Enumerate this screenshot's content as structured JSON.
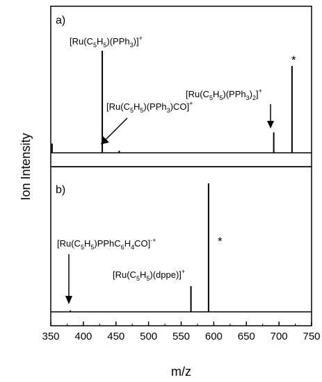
{
  "chart_data": {
    "type": "line",
    "xlabel": "m/z",
    "ylabel": "Ion Intensity",
    "xlim": [
      350,
      750
    ],
    "x_ticks": [
      "350",
      "400",
      "450",
      "500",
      "550",
      "600",
      "650",
      "700",
      "750"
    ],
    "grid": false,
    "panels": [
      {
        "panel_label": "a)",
        "peaks": [
          {
            "x": 352,
            "y": 0.09
          },
          {
            "x": 429,
            "y": 1.0
          },
          {
            "x": 455,
            "y": 0.02
          },
          {
            "x": 692,
            "y": 0.2
          },
          {
            "x": 720,
            "y": 0.85
          }
        ],
        "annotations": [
          {
            "prefix": "[Ru(C",
            "s1": "5",
            "mid1": "H",
            "s2": "5",
            "mid2": ")(PPh",
            "s3": "3",
            "suffix": ")]",
            "sup": "+"
          },
          {
            "prefix": "[Ru(C",
            "s1": "5",
            "mid1": "H",
            "s2": "5",
            "mid2": ")(PPh",
            "s3": "3",
            "suffix": ")CO]",
            "sup": "+"
          },
          {
            "prefix": "[Ru(C",
            "s1": "5",
            "mid1": "H",
            "s2": "5",
            "mid2": ")(PPh",
            "s3": "3",
            "suffix": ")",
            "s4": "2",
            "suffix2": "]",
            "sup": "+"
          },
          {
            "text": "*"
          }
        ]
      },
      {
        "panel_label": "b)",
        "peaks": [
          {
            "x": 380,
            "y": 0.01
          },
          {
            "x": 565,
            "y": 0.2
          },
          {
            "x": 592,
            "y": 1.0
          }
        ],
        "annotations": [
          {
            "prefix": "[Ru(C",
            "s1": "5",
            "mid1": "H",
            "s2": "5",
            "mid2": ")PPhC",
            "s3": "6",
            "mid3": "H",
            "s4": "4",
            "suffix": "CO]",
            "sup": "·+"
          },
          {
            "prefix": "[Ru(C",
            "s1": "5",
            "mid1": "H",
            "s2": "5",
            "suffix": ")(dppe)]",
            "sup": "+"
          },
          {
            "text": "*"
          }
        ]
      }
    ]
  }
}
